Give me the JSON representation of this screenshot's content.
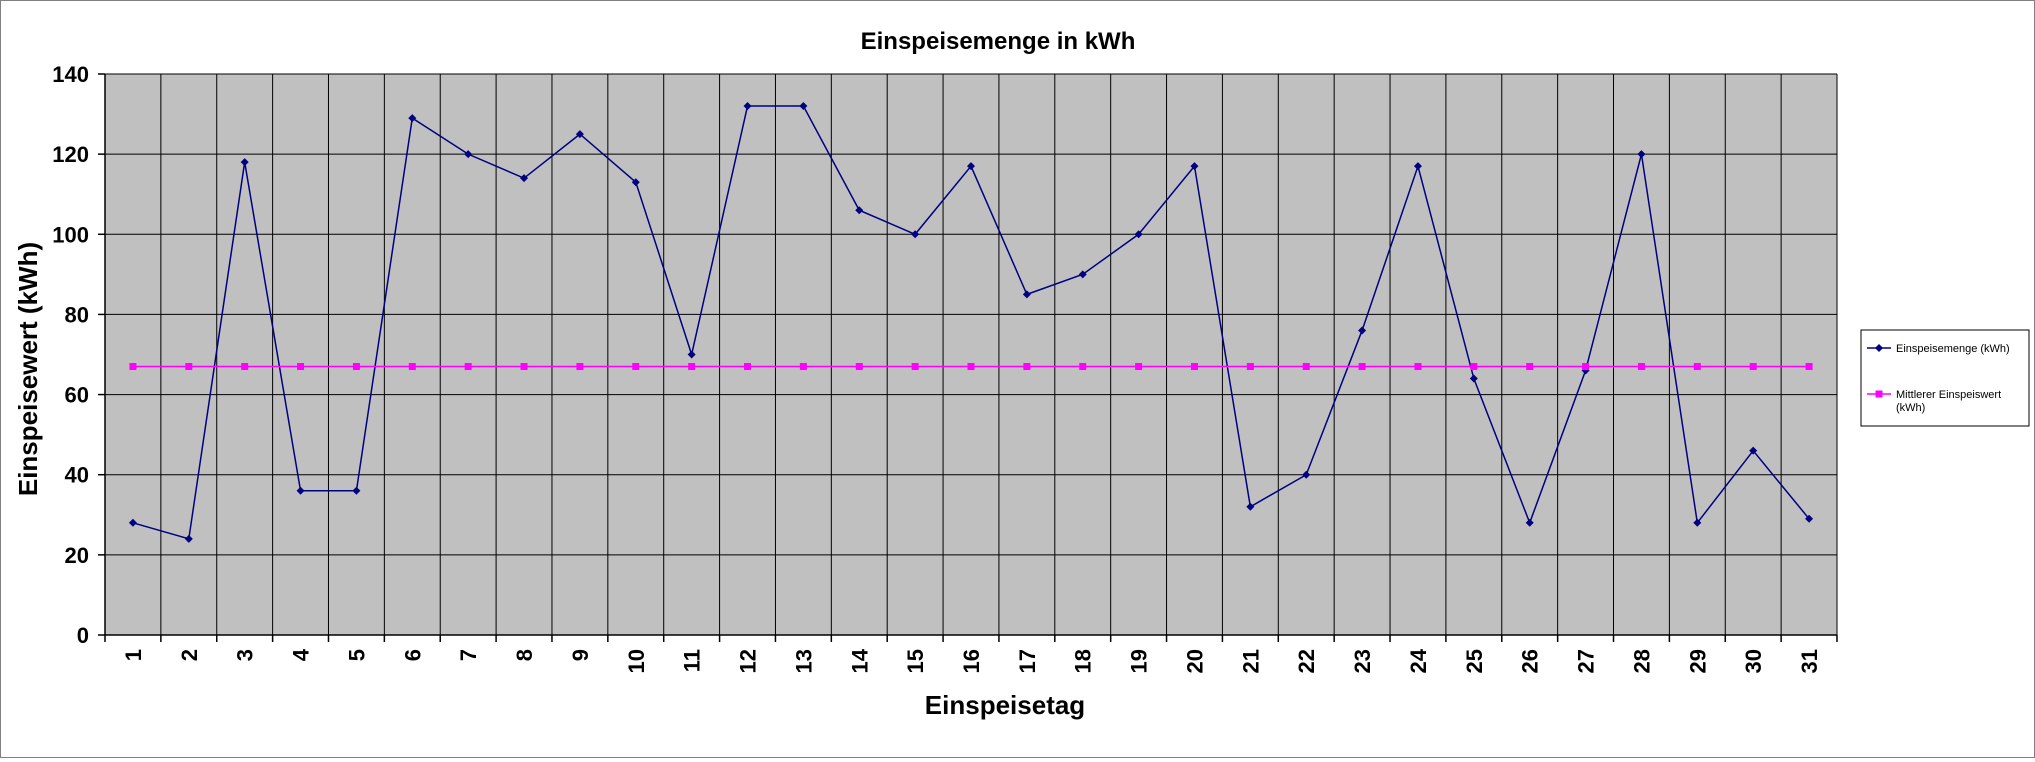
{
  "chart_data": {
    "type": "line",
    "title": "Einspeisemenge in kWh",
    "xlabel": "Einspeisetag",
    "ylabel": "Einspeisewert  (kWh)",
    "ylim": [
      0,
      140
    ],
    "yticks": [
      "0",
      "20",
      "40",
      "60",
      "80",
      "100",
      "120",
      "140"
    ],
    "categories": [
      "1",
      "2",
      "3",
      "4",
      "5",
      "6",
      "7",
      "8",
      "9",
      "10",
      "11",
      "12",
      "13",
      "14",
      "15",
      "16",
      "17",
      "18",
      "19",
      "20",
      "21",
      "22",
      "23",
      "24",
      "25",
      "26",
      "27",
      "28",
      "29",
      "30",
      "31"
    ],
    "grid": true,
    "legend_position": "right",
    "series": [
      {
        "name": "Einspeisemenge (kWh)",
        "color": "#000080",
        "marker": "diamond",
        "values": [
          28,
          24,
          118,
          36,
          36,
          129,
          120,
          114,
          125,
          113,
          70,
          132,
          132,
          106,
          100,
          117,
          85,
          90,
          100,
          117,
          32,
          40,
          76,
          117,
          64,
          28,
          66,
          120,
          28,
          46,
          29
        ]
      },
      {
        "name": "Mittlerer Einspeiswert (kWh)",
        "color": "#ff00ff",
        "marker": "square",
        "values": [
          67,
          67,
          67,
          67,
          67,
          67,
          67,
          67,
          67,
          67,
          67,
          67,
          67,
          67,
          67,
          67,
          67,
          67,
          67,
          67,
          67,
          67,
          67,
          67,
          67,
          67,
          67,
          67,
          67,
          67,
          67
        ]
      }
    ],
    "plot_background": "#c0c0c0",
    "grid_color": "#000000"
  }
}
